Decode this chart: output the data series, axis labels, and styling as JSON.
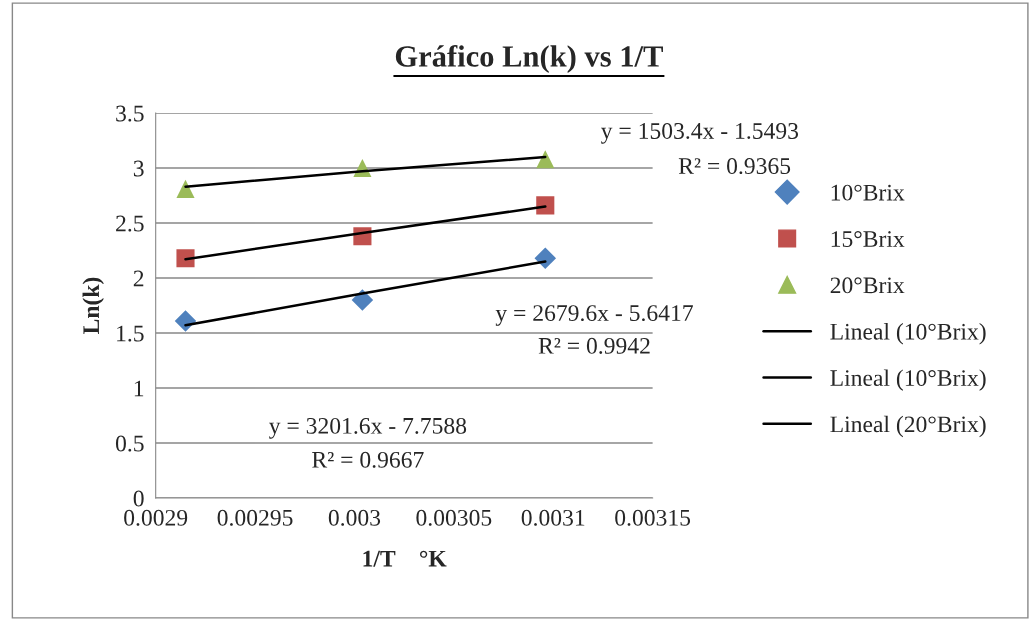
{
  "chart_data": {
    "type": "scatter",
    "title": "Gráfico Ln(k) vs 1/T",
    "xlabel": "1/T    °K",
    "ylabel": "Ln(k)",
    "x": [
      0.002915,
      0.003004,
      0.003096
    ],
    "series": [
      {
        "name": "10°Brix",
        "color": "#4f81bd",
        "marker": "diamond",
        "values": [
          1.61,
          1.8,
          2.18
        ]
      },
      {
        "name": "15°Brix",
        "color": "#c0504d",
        "marker": "square",
        "values": [
          2.18,
          2.38,
          2.66
        ]
      },
      {
        "name": "20°Brix",
        "color": "#9bbb59",
        "marker": "triangle",
        "values": [
          2.81,
          3.0,
          3.08
        ]
      },
      {
        "name": "Lineal (10°Brix)",
        "type": "line",
        "color": "#000000",
        "marker": "none",
        "values": [
          1.57,
          1.86,
          2.15
        ]
      },
      {
        "name": "Lineal (10°Brix)",
        "type": "line",
        "color": "#000000",
        "marker": "none",
        "values": [
          2.17,
          2.41,
          2.65
        ]
      },
      {
        "name": "Lineal (20°Brix)",
        "type": "line",
        "color": "#000000",
        "marker": "none",
        "values": [
          2.83,
          2.97,
          3.1
        ]
      }
    ],
    "annotations": [
      "y = 1503.4x - 1.5493",
      "R² = 0.9365",
      "y = 2679.6x - 5.6417",
      "R² = 0.9942",
      "y = 3201.6x - 7.7588",
      "R² = 0.9667"
    ],
    "xlim": [
      0.0029,
      0.00315
    ],
    "xticks": [
      0.0029,
      0.00295,
      0.003,
      0.00305,
      0.0031,
      0.00315
    ],
    "ylim": [
      0,
      3.5
    ],
    "yticks": [
      0,
      0.5,
      1,
      1.5,
      2,
      2.5,
      3,
      3.5
    ],
    "grid": "y",
    "legend": "right"
  }
}
